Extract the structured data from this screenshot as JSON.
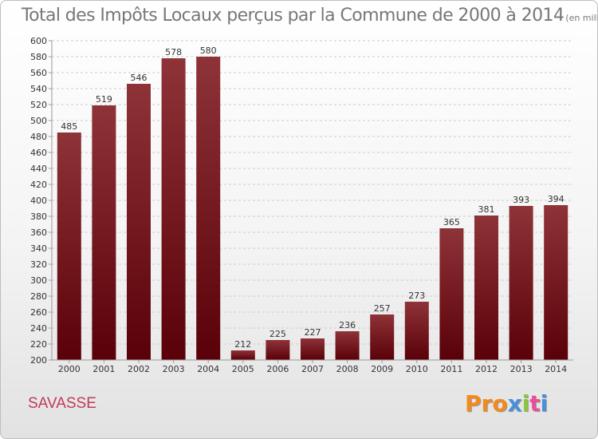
{
  "page": {
    "title": "Total des Impôts Locaux perçus par la Commune de 2000 à 2014",
    "title_unit": "(en milliers d'€)",
    "commune": "SAVASSE",
    "logo": "Proxiti"
  },
  "colors": {
    "bar_top": "#8e3338",
    "bar_bottom": "#5a0008",
    "axis": "#999999",
    "grid": "#cccccc",
    "text": "#333333",
    "commune": "#c23b5a",
    "logo_letters": [
      "#f28a1e",
      "#f28a1e",
      "#f28a1e",
      "#4a90d9",
      "#8cc63e",
      "#e94e9b",
      "#4a90d9"
    ]
  },
  "chart_data": {
    "type": "bar",
    "categories": [
      "2000",
      "2001",
      "2002",
      "2003",
      "2004",
      "2005",
      "2006",
      "2007",
      "2008",
      "2009",
      "2010",
      "2011",
      "2012",
      "2013",
      "2014"
    ],
    "values": [
      485,
      519,
      546,
      578,
      580,
      212,
      225,
      227,
      236,
      257,
      273,
      365,
      381,
      393,
      394
    ],
    "title": "Total des Impôts Locaux perçus par la Commune de 2000 à 2014",
    "unit": "(en milliers d'€)",
    "ylim": [
      200,
      600
    ],
    "yticks": [
      200,
      220,
      240,
      260,
      280,
      300,
      320,
      340,
      360,
      380,
      400,
      420,
      440,
      460,
      480,
      500,
      520,
      540,
      560,
      580,
      600
    ],
    "grid": "horizontal dashed",
    "data_labels": true
  }
}
